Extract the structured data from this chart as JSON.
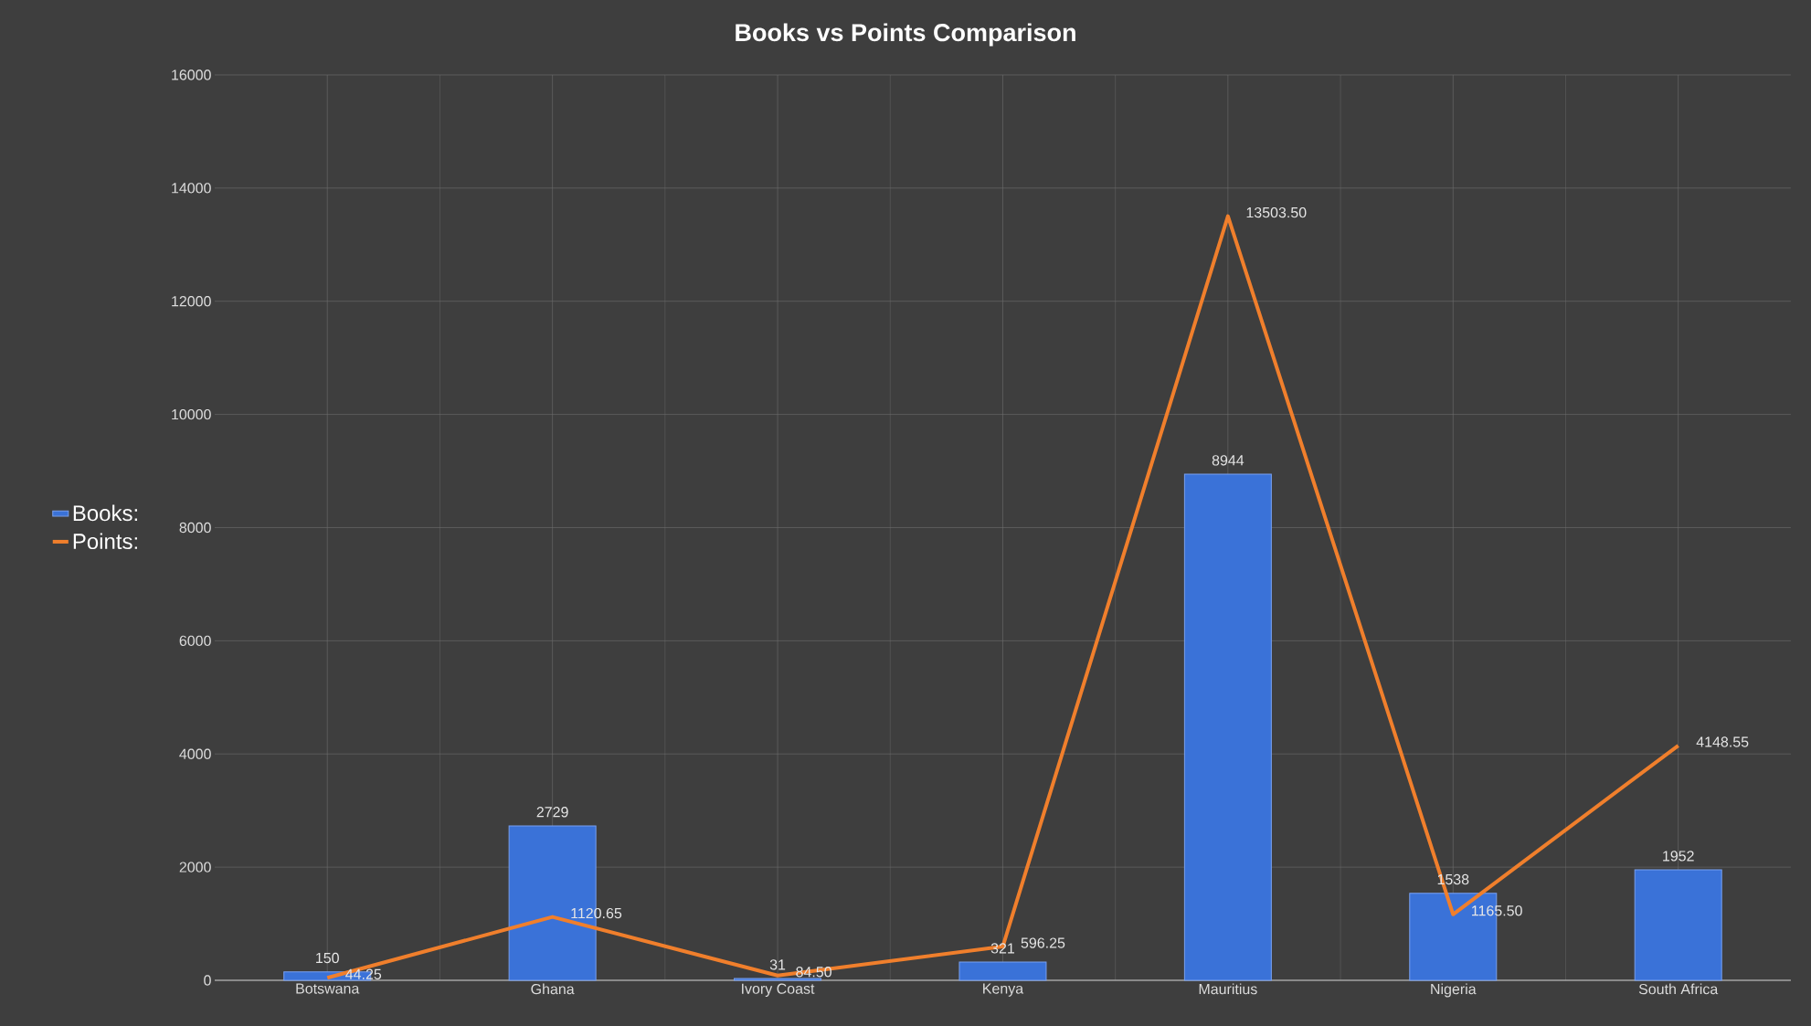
{
  "chart_data": {
    "type": "bar",
    "title": "Books vs Points Comparison",
    "categories": [
      "Botswana",
      "Ghana",
      "Ivory Coast",
      "Kenya",
      "Mauritius",
      "Nigeria",
      "South Africa"
    ],
    "series": [
      {
        "name": "Books:",
        "color": "#3a72d8",
        "values": [
          150,
          2729,
          31,
          321,
          8944,
          1538,
          1952
        ],
        "value_labels": [
          "150",
          "2729",
          "31",
          "321",
          "8944",
          "1538",
          "1952"
        ]
      },
      {
        "name": "Points:",
        "type": "line",
        "color": "#f07f2c",
        "values": [
          44.25,
          1120.65,
          84.5,
          596.25,
          13503.5,
          1165.5,
          4148.55
        ],
        "value_labels": [
          "44.25",
          "1120.65",
          "84.50",
          "596.25",
          "13503.50",
          "1165.50",
          "4148.55"
        ]
      }
    ],
    "ylim": [
      0,
      16000
    ],
    "yticks": [
      0,
      2000,
      4000,
      6000,
      8000,
      10000,
      12000,
      14000,
      16000
    ],
    "grid": true,
    "legend": "left"
  }
}
